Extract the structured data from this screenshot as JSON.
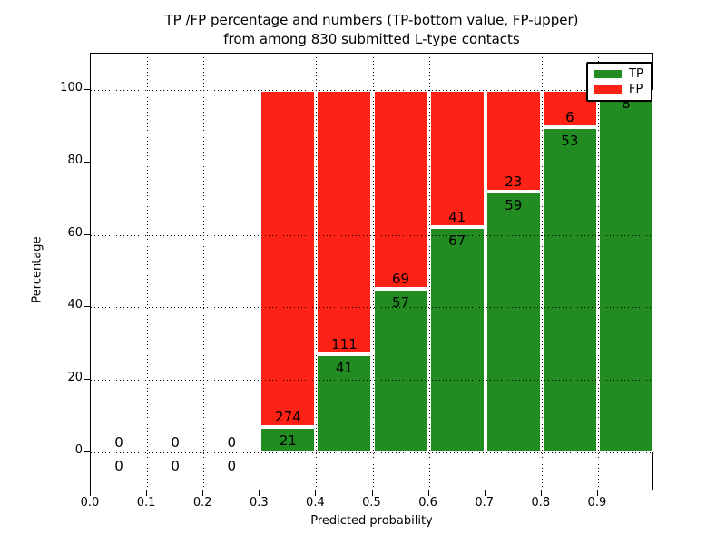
{
  "title": {
    "line1": "TP /FP percentage and numbers (TP-bottom value, FP-upper)",
    "line2": "from among 830 submitted L-type contacts"
  },
  "axes": {
    "xlabel": "Predicted probability",
    "ylabel": "Percentage",
    "x_tick_labels": [
      "0.0",
      "0.1",
      "0.2",
      "0.3",
      "0.4",
      "0.5",
      "0.6",
      "0.7",
      "0.8",
      "0.9"
    ],
    "y_tick_labels": [
      "0",
      "20",
      "40",
      "60",
      "80",
      "100"
    ]
  },
  "legend": {
    "position": "upper right",
    "items": [
      {
        "label": "TP",
        "color": "#228B22"
      },
      {
        "label": "FP",
        "color": "#fd2116"
      }
    ]
  },
  "colors": {
    "tp_green": "#228B22",
    "fp_red": "#fd2116",
    "grid": "#000000",
    "background": "#ffffff"
  },
  "chart_data": {
    "type": "bar",
    "stacked": true,
    "normalized_to_percent": true,
    "title": "TP /FP percentage and numbers (TP-bottom value, FP-upper) from among 830 submitted L-type contacts",
    "xlabel": "Predicted probability",
    "ylabel": "Percentage",
    "xlim": [
      0.0,
      1.0
    ],
    "ylim": [
      -10.8,
      110
    ],
    "grid": "dotted both axes, drawn above bars",
    "legend_position": "upper right",
    "total_contacts": 830,
    "bin_width": 0.1,
    "x_bins": [
      0.0,
      0.1,
      0.2,
      0.3,
      0.4,
      0.5,
      0.6,
      0.7,
      0.8,
      0.9
    ],
    "series": [
      {
        "name": "TP",
        "color": "#228B22",
        "values": [
          0,
          0,
          0,
          21,
          41,
          57,
          67,
          59,
          53,
          8
        ]
      },
      {
        "name": "FP",
        "color": "#fd2116",
        "values": [
          0,
          0,
          0,
          274,
          111,
          69,
          41,
          23,
          6,
          0
        ]
      }
    ],
    "tp_percent_per_bin": [
      0,
      0,
      0,
      7.1,
      27.0,
      45.2,
      62.0,
      72.0,
      89.8,
      100.0
    ]
  }
}
